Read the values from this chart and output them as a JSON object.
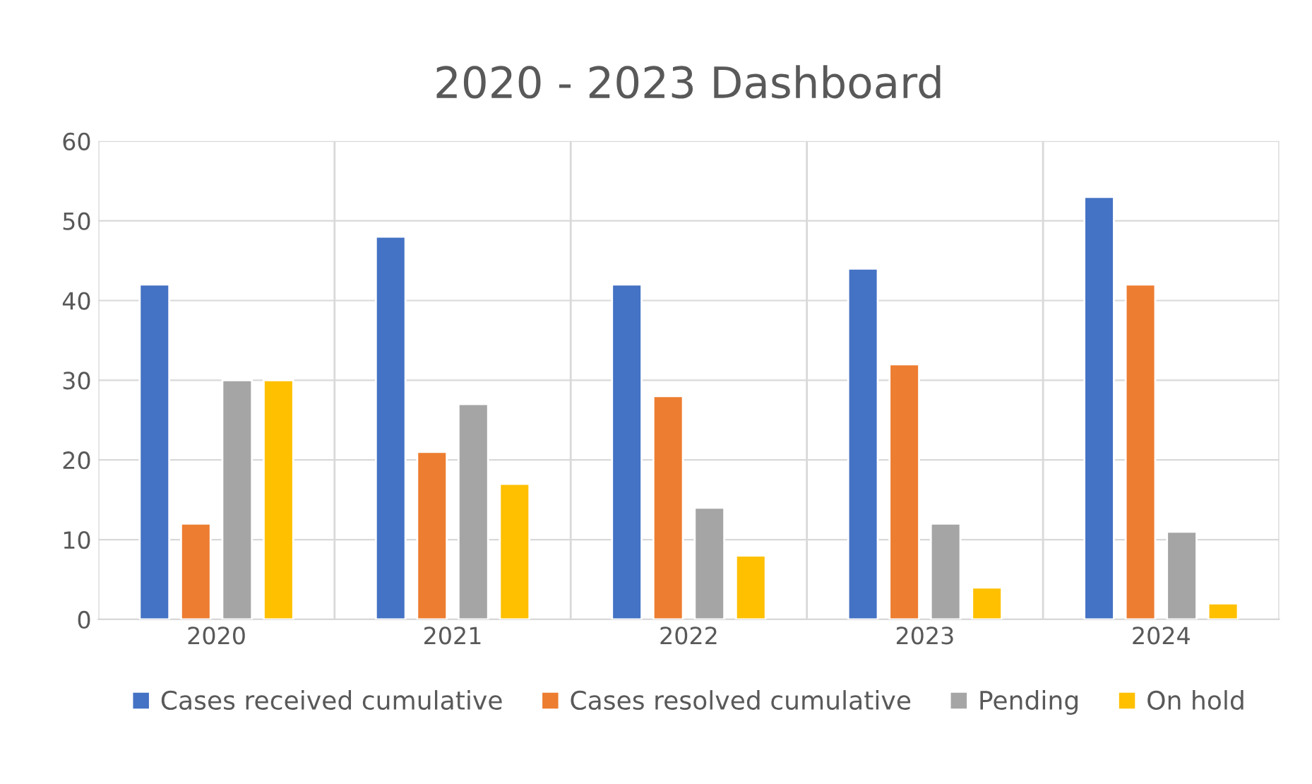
{
  "chart_data": {
    "type": "bar",
    "title": "2020 - 2023 Dashboard",
    "categories": [
      "2020",
      "2021",
      "2022",
      "2023",
      "2024"
    ],
    "series": [
      {
        "name": "Cases received cumulative",
        "color": "#4472c4",
        "values": [
          42,
          48,
          42,
          44,
          53
        ]
      },
      {
        "name": "Cases resolved cumulative",
        "color": "#ed7d31",
        "values": [
          12,
          21,
          28,
          32,
          42
        ]
      },
      {
        "name": "Pending",
        "color": "#a5a5a5",
        "values": [
          30,
          27,
          14,
          12,
          11
        ]
      },
      {
        "name": "On hold",
        "color": "#ffc000",
        "values": [
          30,
          17,
          8,
          4,
          2
        ]
      }
    ],
    "ylim": [
      0,
      60
    ],
    "yticks": [
      0,
      10,
      20,
      30,
      40,
      50,
      60
    ],
    "grid": true,
    "legend": "bottom"
  }
}
